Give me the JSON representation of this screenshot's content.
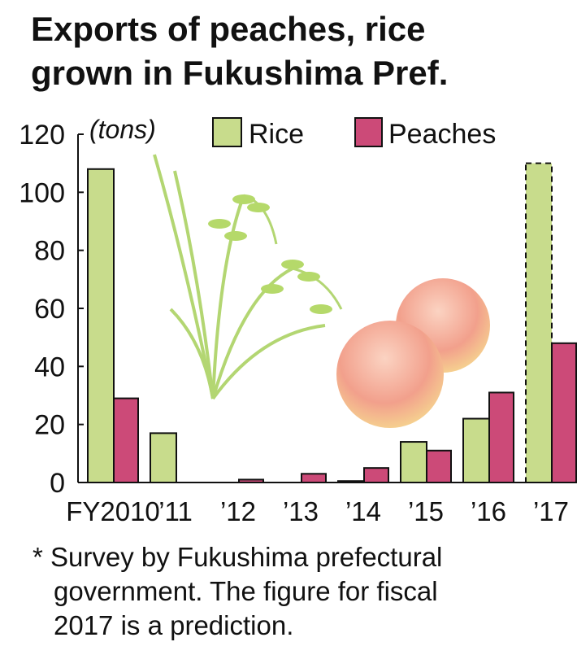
{
  "chart_data": {
    "type": "bar",
    "title_lines": [
      "Exports of peaches, rice",
      "grown in Fukushima Pref."
    ],
    "unit": "(tons)",
    "categories": [
      "FY2010",
      "’11",
      "’12",
      "’13",
      "’14",
      "’15",
      "’16",
      "’17"
    ],
    "series": [
      {
        "name": "Rice",
        "color": "#c8dc8c",
        "values": [
          108,
          17,
          null,
          null,
          0.5,
          14,
          22,
          110
        ]
      },
      {
        "name": "Peaches",
        "color": "#cc4a78",
        "values": [
          29,
          null,
          1,
          3,
          5,
          11,
          31,
          48
        ]
      }
    ],
    "prediction_index": 7,
    "ylim": [
      0,
      120
    ],
    "yticks": [
      0,
      20,
      40,
      60,
      80,
      100,
      120
    ],
    "note_lines": [
      "* Survey by Fukushima prefectural",
      "government. The figure for fiscal",
      "2017 is a prediction."
    ]
  }
}
